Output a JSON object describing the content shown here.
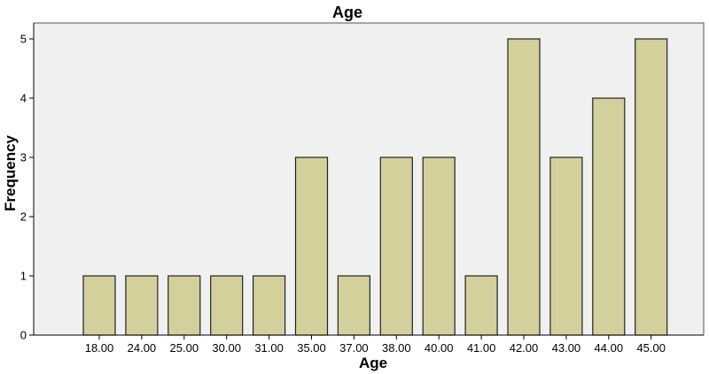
{
  "chart_data": {
    "type": "bar",
    "title": "Age",
    "xlabel": "Age",
    "ylabel": "Frequency",
    "categories": [
      "18.00",
      "24.00",
      "25.00",
      "30.00",
      "31.00",
      "35.00",
      "37.00",
      "38.00",
      "40.00",
      "41.00",
      "42.00",
      "43.00",
      "44.00",
      "45.00"
    ],
    "values": [
      1,
      1,
      1,
      1,
      1,
      3,
      1,
      3,
      3,
      1,
      5,
      3,
      4,
      5
    ],
    "ylim": [
      0,
      5
    ],
    "yticks": [
      "0",
      "1",
      "2",
      "3",
      "4",
      "5"
    ],
    "grid": false,
    "colors": {
      "plot_background": "#f0f0f0",
      "bar_fill": "#d4d09b",
      "bar_stroke": "#222222",
      "frame": "#555555"
    }
  }
}
